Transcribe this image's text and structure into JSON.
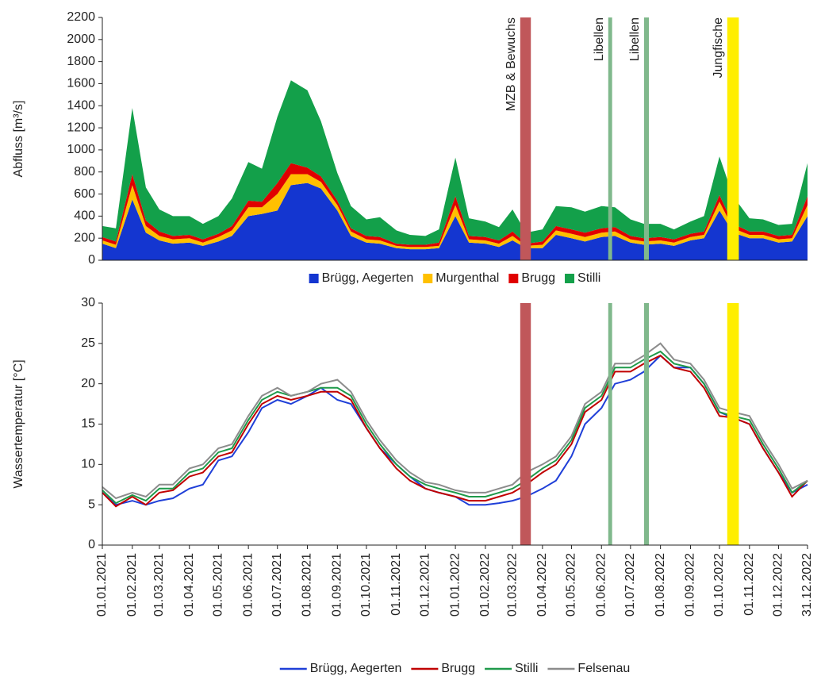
{
  "chart_data": [
    {
      "type": "stacked_area",
      "y_label": "Abfluss [m³/s]",
      "x": [
        "01.01.2021",
        "15.01.2021",
        "01.02.2021",
        "15.02.2021",
        "01.03.2021",
        "15.03.2021",
        "01.04.2021",
        "15.04.2021",
        "01.05.2021",
        "15.05.2021",
        "01.06.2021",
        "15.06.2021",
        "01.07.2021",
        "15.07.2021",
        "01.08.2021",
        "15.08.2021",
        "01.09.2021",
        "15.09.2021",
        "01.10.2021",
        "15.10.2021",
        "01.11.2021",
        "15.11.2021",
        "01.12.2021",
        "15.12.2021",
        "01.01.2022",
        "15.01.2022",
        "01.02.2022",
        "15.02.2022",
        "01.03.2022",
        "15.03.2022",
        "01.04.2022",
        "15.04.2022",
        "01.05.2022",
        "15.05.2022",
        "01.06.2022",
        "15.06.2022",
        "01.07.2022",
        "15.07.2022",
        "01.08.2022",
        "15.08.2022",
        "01.09.2022",
        "15.09.2022",
        "01.10.2022",
        "15.10.2022",
        "01.11.2022",
        "15.11.2022",
        "01.12.2022",
        "15.12.2022",
        "31.12.2022"
      ],
      "xlim": [
        "01.01.2021",
        "31.12.2022"
      ],
      "ylim": [
        0,
        2200
      ],
      "yticks": [
        0,
        200,
        400,
        600,
        800,
        1000,
        1200,
        1400,
        1600,
        1800,
        2000,
        2200
      ],
      "series": [
        {
          "name": "Brügg, Aegerten",
          "color": "#1436d0",
          "values": [
            150,
            110,
            550,
            250,
            180,
            150,
            160,
            130,
            170,
            220,
            400,
            420,
            450,
            680,
            700,
            650,
            450,
            220,
            160,
            150,
            110,
            100,
            100,
            110,
            400,
            160,
            150,
            120,
            180,
            110,
            110,
            230,
            200,
            170,
            210,
            220,
            160,
            140,
            150,
            130,
            180,
            200,
            450,
            250,
            200,
            200,
            160,
            170,
            400
          ]
        },
        {
          "name": "Murgenthal",
          "color": "#ffc000",
          "values": [
            30,
            30,
            130,
            60,
            40,
            40,
            40,
            30,
            40,
            50,
            80,
            60,
            150,
            100,
            80,
            60,
            50,
            40,
            30,
            30,
            20,
            20,
            20,
            20,
            100,
            30,
            30,
            30,
            40,
            20,
            30,
            40,
            40,
            40,
            40,
            40,
            30,
            30,
            30,
            30,
            30,
            30,
            80,
            40,
            30,
            30,
            30,
            30,
            100
          ]
        },
        {
          "name": "Brugg",
          "color": "#e00000",
          "values": [
            30,
            30,
            100,
            50,
            40,
            30,
            30,
            30,
            30,
            40,
            60,
            50,
            100,
            100,
            60,
            50,
            40,
            30,
            30,
            30,
            20,
            20,
            20,
            30,
            80,
            30,
            30,
            30,
            40,
            20,
            30,
            40,
            40,
            40,
            40,
            40,
            30,
            30,
            30,
            30,
            30,
            30,
            60,
            40,
            30,
            30,
            30,
            30,
            80
          ]
        },
        {
          "name": "Stilli",
          "color": "#13a04a",
          "values": [
            100,
            120,
            600,
            300,
            200,
            180,
            170,
            140,
            160,
            250,
            350,
            300,
            600,
            750,
            700,
            500,
            250,
            200,
            150,
            180,
            120,
            90,
            80,
            120,
            350,
            160,
            140,
            120,
            200,
            100,
            110,
            180,
            200,
            190,
            200,
            180,
            150,
            130,
            120,
            90,
            110,
            140,
            350,
            250,
            120,
            110,
            100,
            100,
            300
          ]
        }
      ],
      "annotations": [
        {
          "label": "MZB & Bewuchs",
          "x0": "09.03.2022",
          "x1": "20.03.2022",
          "color": "#c0575a"
        },
        {
          "label": "Libellen",
          "x0": "08.06.2022",
          "x1": "12.06.2022",
          "color": "#80b88c"
        },
        {
          "label": "Libellen",
          "x0": "15.07.2022",
          "x1": "20.07.2022",
          "color": "#80b88c"
        },
        {
          "label": "Jungfische",
          "x0": "09.10.2022",
          "x1": "21.10.2022",
          "color": "#ffee00"
        }
      ]
    },
    {
      "type": "line",
      "y_label": "Wassertemperatur [°C]",
      "x": [
        "01.01.2021",
        "15.01.2021",
        "01.02.2021",
        "15.02.2021",
        "01.03.2021",
        "15.03.2021",
        "01.04.2021",
        "15.04.2021",
        "01.05.2021",
        "15.05.2021",
        "01.06.2021",
        "15.06.2021",
        "01.07.2021",
        "15.07.2021",
        "01.08.2021",
        "15.08.2021",
        "01.09.2021",
        "15.09.2021",
        "01.10.2021",
        "15.10.2021",
        "01.11.2021",
        "15.11.2021",
        "01.12.2021",
        "15.12.2021",
        "01.01.2022",
        "15.01.2022",
        "01.02.2022",
        "15.02.2022",
        "01.03.2022",
        "15.03.2022",
        "01.04.2022",
        "15.04.2022",
        "01.05.2022",
        "15.05.2022",
        "01.06.2022",
        "15.06.2022",
        "01.07.2022",
        "15.07.2022",
        "01.08.2022",
        "15.08.2022",
        "01.09.2022",
        "15.09.2022",
        "01.10.2022",
        "15.10.2022",
        "01.11.2022",
        "15.11.2022",
        "01.12.2022",
        "15.12.2022",
        "31.12.2022"
      ],
      "xlim": [
        "01.01.2021",
        "31.12.2022"
      ],
      "xticks": [
        "01.01.2021",
        "01.02.2021",
        "01.03.2021",
        "01.04.2021",
        "01.05.2021",
        "01.06.2021",
        "01.07.2021",
        "01.08.2021",
        "01.09.2021",
        "01.10.2021",
        "01.11.2021",
        "01.12.2021",
        "01.01.2022",
        "01.02.2022",
        "01.03.2022",
        "01.04.2022",
        "01.05.2022",
        "01.06.2022",
        "01.07.2022",
        "01.08.2022",
        "01.09.2022",
        "01.10.2022",
        "01.11.2022",
        "01.12.2022",
        "31.12.2022"
      ],
      "ylim": [
        0,
        30
      ],
      "yticks": [
        0,
        5,
        10,
        15,
        20,
        25,
        30
      ],
      "series": [
        {
          "name": "Brügg, Aegerten",
          "color": "#1f3fd8",
          "values": [
            6.5,
            5,
            5.5,
            5,
            5.5,
            5.8,
            7,
            7.5,
            10.5,
            11,
            14,
            17,
            18,
            17.5,
            18.5,
            19.5,
            18,
            17.5,
            14.5,
            12,
            10,
            8.5,
            7,
            6.5,
            6,
            5,
            5,
            5.2,
            5.5,
            6,
            7,
            8,
            11,
            15,
            17,
            20,
            20.5,
            21.5,
            23.5,
            22,
            22,
            20,
            16.5,
            15.8,
            15,
            12,
            9,
            6.5,
            7.5
          ]
        },
        {
          "name": "Brugg",
          "color": "#c00000",
          "values": [
            6.5,
            4.8,
            6,
            5,
            6.5,
            6.8,
            8.5,
            9,
            11,
            11.5,
            15,
            17.5,
            18.5,
            18,
            18.5,
            19,
            19,
            18,
            14.5,
            12,
            9.5,
            8,
            7,
            6.5,
            6,
            5.5,
            5.5,
            6,
            6.5,
            7.5,
            9,
            10,
            12.5,
            16.5,
            18,
            21.5,
            21.5,
            22.5,
            23.5,
            22,
            21.5,
            19.5,
            16,
            15.8,
            15,
            12,
            9,
            6,
            8
          ]
        },
        {
          "name": "Stilli",
          "color": "#1f9a4a",
          "values": [
            6.8,
            5.2,
            6.2,
            5.5,
            7,
            7,
            9,
            9.5,
            11.5,
            12,
            15.5,
            18,
            19,
            18.5,
            19,
            19.5,
            19.5,
            18.5,
            15,
            12.5,
            10,
            8.5,
            7.5,
            7,
            6.5,
            6,
            6,
            6.5,
            7,
            8,
            9.5,
            10.5,
            13,
            17,
            18.5,
            22,
            22,
            23,
            24,
            22.5,
            22,
            20,
            16.5,
            16,
            15.5,
            12.5,
            9.5,
            6.5,
            8
          ]
        },
        {
          "name": "Felsenau",
          "color": "#8c8c8c",
          "values": [
            7.2,
            5.8,
            6.5,
            6,
            7.5,
            7.5,
            9.5,
            10,
            12,
            12.5,
            16,
            18.5,
            19.5,
            18.5,
            19,
            20,
            20.5,
            19,
            15.5,
            13,
            10.5,
            9,
            7.8,
            7.5,
            6.8,
            6.5,
            6.5,
            7,
            7.5,
            9,
            10,
            11,
            13.5,
            17.5,
            19,
            22.5,
            22.5,
            23.5,
            25,
            23,
            22.5,
            20.5,
            17,
            16.5,
            16,
            13,
            10,
            7,
            8
          ]
        }
      ],
      "bands": [
        {
          "x0": "09.03.2022",
          "x1": "20.03.2022",
          "color": "#c0575a"
        },
        {
          "x0": "08.06.2022",
          "x1": "12.06.2022",
          "color": "#80b88c"
        },
        {
          "x0": "15.07.2022",
          "x1": "20.07.2022",
          "color": "#80b88c"
        },
        {
          "x0": "09.10.2022",
          "x1": "21.10.2022",
          "color": "#ffee00"
        }
      ]
    }
  ]
}
